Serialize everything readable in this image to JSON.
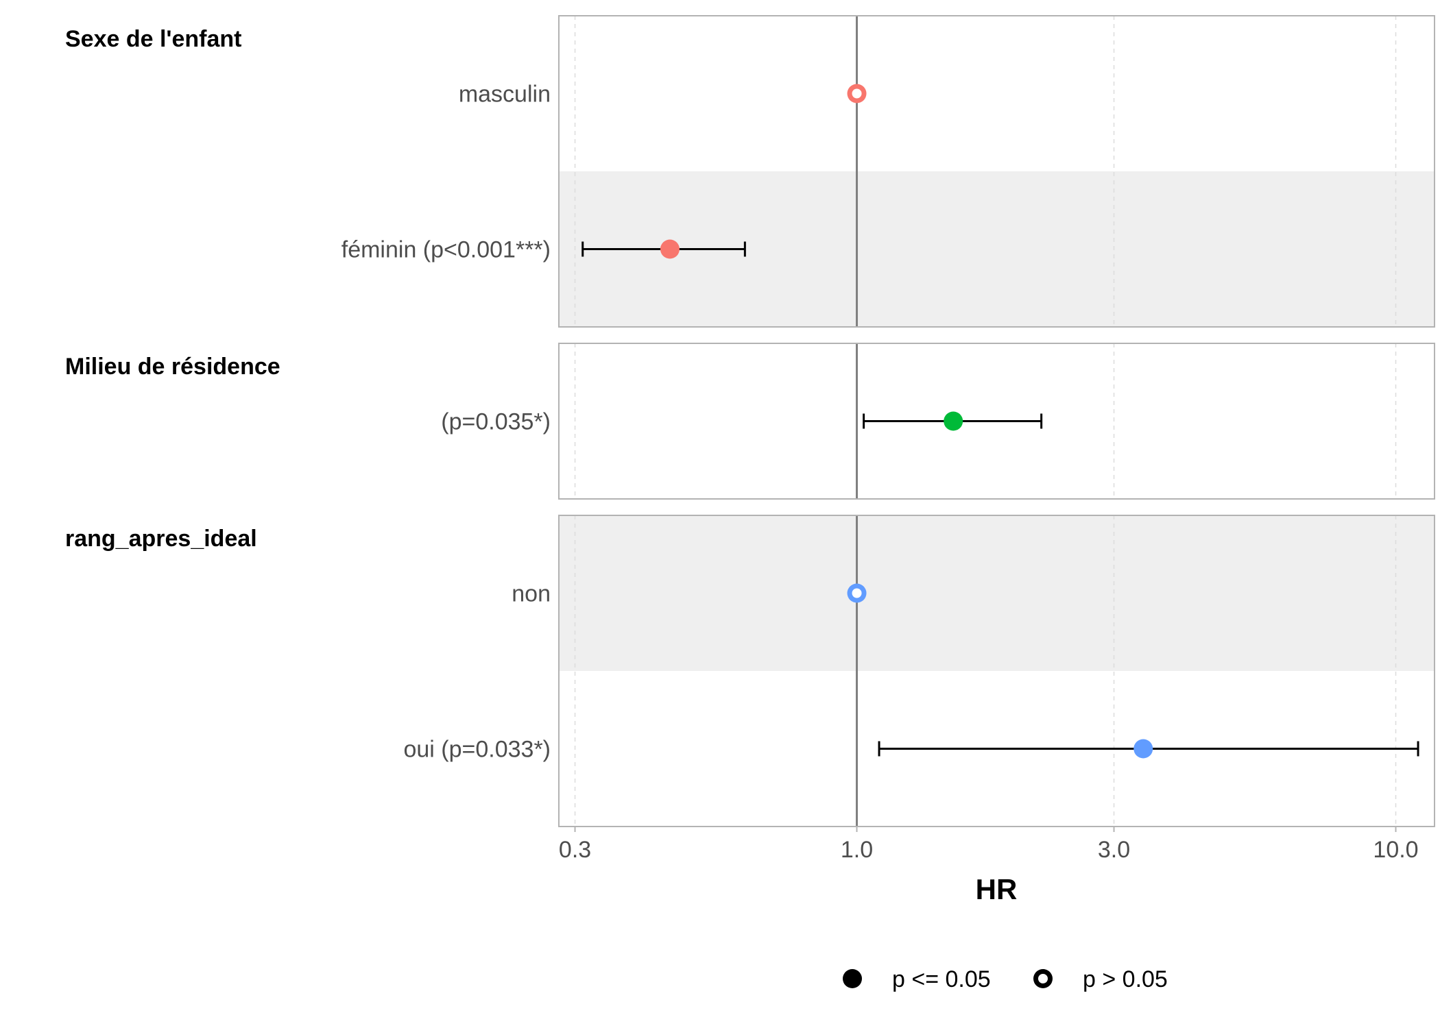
{
  "chart_data": {
    "type": "forest",
    "xlabel": "HR",
    "x_scale": "log",
    "xlim": [
      0.28,
      11.8
    ],
    "x_ticks": [
      0.3,
      1.0,
      3.0,
      10.0
    ],
    "x_tick_labels": [
      "0.3",
      "1.0",
      "3.0",
      "10.0"
    ],
    "reference_line": 1.0,
    "grid": true,
    "groups": [
      {
        "title": "Sexe de l'enfant",
        "color": "#F8766D",
        "rows": [
          {
            "label": "masculin",
            "hr": 1.0,
            "ci": null,
            "significant": false,
            "shaded": false
          },
          {
            "label": "féminin (p<0.001***)",
            "hr": 0.45,
            "ci": [
              0.31,
              0.62
            ],
            "significant": true,
            "shaded": true
          }
        ]
      },
      {
        "title": "Milieu de résidence",
        "color": "#00BA38",
        "rows": [
          {
            "label": "(p=0.035*)",
            "hr": 1.51,
            "ci": [
              1.03,
              2.2
            ],
            "significant": true,
            "shaded": false
          }
        ]
      },
      {
        "title": "rang_apres_ideal",
        "color": "#619CFF",
        "rows": [
          {
            "label": "non",
            "hr": 1.0,
            "ci": null,
            "significant": false,
            "shaded": true
          },
          {
            "label": "oui (p=0.033*)",
            "hr": 3.4,
            "ci": [
              1.1,
              11.0
            ],
            "significant": true,
            "shaded": false
          }
        ]
      }
    ],
    "legend": {
      "position": "bottom",
      "items": [
        {
          "label": "p <= 0.05",
          "marker": "filled"
        },
        {
          "label": "p > 0.05",
          "marker": "hollow"
        }
      ]
    }
  }
}
